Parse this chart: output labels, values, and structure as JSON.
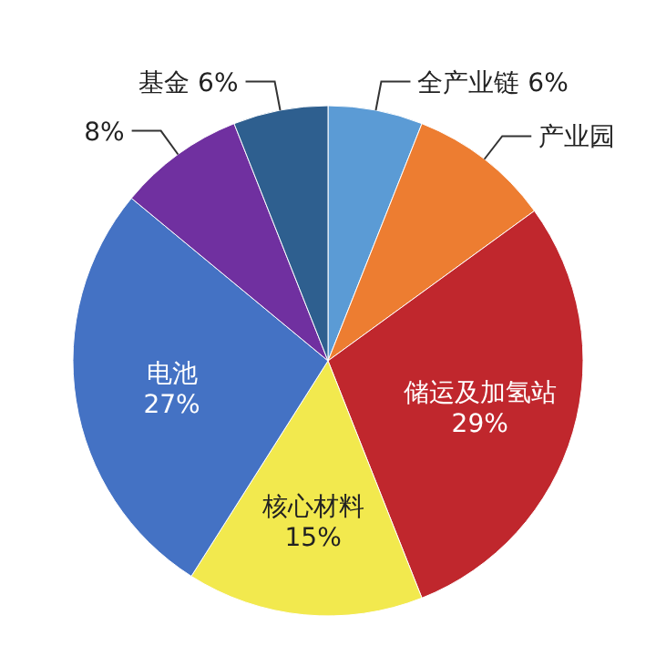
{
  "chart_data": {
    "type": "pie",
    "categories": [
      "全产业链",
      "产业园",
      "储运及加氢站",
      "核心材料",
      "电池",
      null,
      "基金"
    ],
    "values": [
      6,
      9,
      29,
      15,
      27,
      8,
      6
    ],
    "value_labels": [
      "6%",
      null,
      "29%",
      "15%",
      "27%",
      "8%",
      "6%"
    ],
    "colors": [
      "#5b9bd5",
      "#ed7d31",
      "#c0272d",
      "#f2e94e",
      "#4472c4",
      "#7030a0",
      "#2e5f8f"
    ]
  }
}
